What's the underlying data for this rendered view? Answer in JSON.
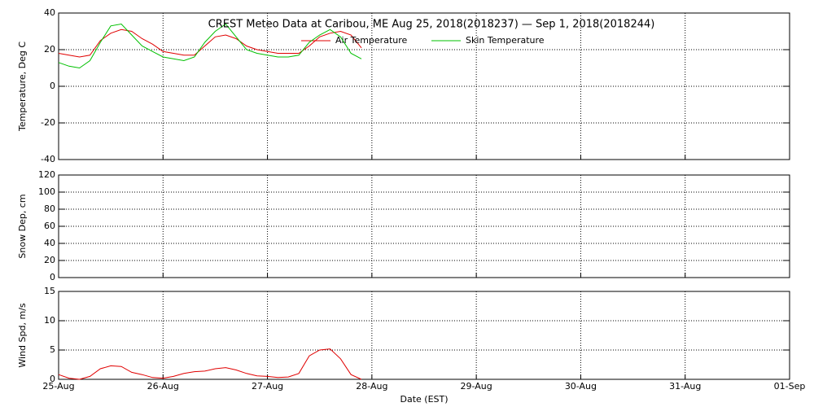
{
  "chart_data": [
    {
      "type": "line",
      "title": "CREST Meteo Data at Caribou, ME   Aug 25, 2018(2018237) — Sep  1, 2018(2018244)",
      "y_label": "Temperature, Deg C",
      "x": [
        0,
        0.1,
        0.2,
        0.3,
        0.4,
        0.5,
        0.6,
        0.7,
        0.8,
        0.9,
        1,
        1.1,
        1.2,
        1.3,
        1.4,
        1.5,
        1.6,
        1.7,
        1.8,
        1.9,
        2,
        2.1,
        2.2,
        2.3,
        2.4,
        2.5,
        2.6,
        2.7,
        2.8,
        2.9
      ],
      "series": [
        {
          "name": "Air Temperature",
          "color": "#e00000",
          "values": [
            18,
            17,
            16,
            17,
            25,
            29,
            31,
            30,
            26,
            23,
            19,
            18,
            17,
            17,
            22,
            27,
            28,
            26,
            22,
            20,
            19,
            18,
            18,
            18,
            22,
            27,
            29,
            30,
            28,
            21
          ]
        },
        {
          "name": "Skin Temperature",
          "color": "#00c000",
          "values": [
            13,
            11,
            10,
            14,
            24,
            33,
            34,
            28,
            22,
            19,
            16,
            15,
            14,
            16,
            24,
            30,
            34,
            27,
            20,
            18,
            17,
            16,
            16,
            17,
            24,
            28,
            31,
            27,
            18,
            15
          ]
        }
      ],
      "xlim": [
        0,
        7
      ],
      "xticks": [
        0,
        1,
        2,
        3,
        4,
        5,
        6,
        7
      ],
      "ylim": [
        -40,
        40
      ],
      "yticks": [
        -40,
        -20,
        0,
        20,
        40
      ],
      "grid": true
    },
    {
      "type": "line",
      "y_label": "Snow Dep, cm",
      "xlim": [
        0,
        7
      ],
      "xticks": [
        0,
        1,
        2,
        3,
        4,
        5,
        6,
        7
      ],
      "ylim": [
        0,
        120
      ],
      "yticks": [
        0,
        20,
        40,
        60,
        80,
        100,
        120
      ],
      "grid": true
    },
    {
      "type": "line",
      "y_label": "Wind Spd, m/s",
      "x_label": "Date (EST)",
      "x": [
        0,
        0.1,
        0.2,
        0.3,
        0.4,
        0.5,
        0.6,
        0.7,
        0.8,
        0.9,
        1,
        1.1,
        1.2,
        1.3,
        1.4,
        1.5,
        1.6,
        1.7,
        1.8,
        1.9,
        2,
        2.1,
        2.2,
        2.3,
        2.4,
        2.5,
        2.6,
        2.7,
        2.8,
        2.9
      ],
      "series": [
        {
          "color": "#e00000",
          "values": [
            0.8,
            0.2,
            0,
            0.5,
            1.8,
            2.3,
            2.2,
            1.2,
            0.8,
            0.3,
            0.2,
            0.5,
            1.0,
            1.3,
            1.4,
            1.8,
            2.0,
            1.6,
            1.0,
            0.6,
            0.5,
            0.3,
            0.4,
            1.0,
            4.0,
            5.0,
            5.2,
            3.5,
            0.8,
            0
          ]
        }
      ],
      "xlim": [
        0,
        7
      ],
      "xticks": [
        {
          "value": 0,
          "label": "25-Aug"
        },
        {
          "value": 1,
          "label": "26-Aug"
        },
        {
          "value": 2,
          "label": "27-Aug"
        },
        {
          "value": 3,
          "label": "28-Aug"
        },
        {
          "value": 4,
          "label": "29-Aug"
        },
        {
          "value": 5,
          "label": "30-Aug"
        },
        {
          "value": 6,
          "label": "31-Aug"
        },
        {
          "value": 7,
          "label": "01-Sep"
        }
      ],
      "ylim": [
        0,
        15
      ],
      "yticks": [
        0,
        5,
        10,
        15
      ],
      "grid": true
    }
  ]
}
